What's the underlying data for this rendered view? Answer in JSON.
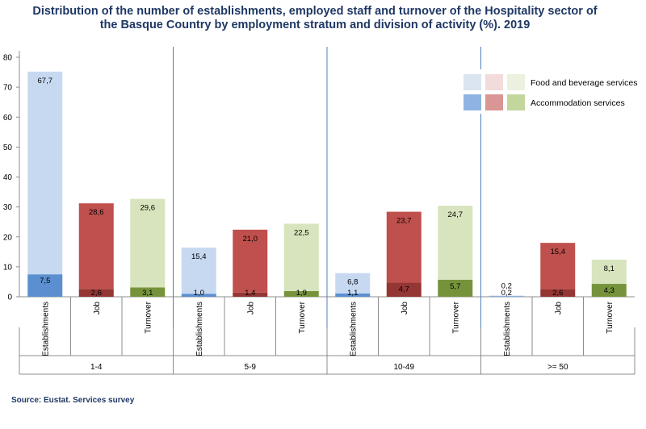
{
  "title": "Distribution of the number of establishments, employed staff and turnover of the Hospitality sector of the Basque Country by employment stratum and division of activity (%). 2019",
  "source": "Source: Eustat. Services survey",
  "colors": {
    "establishments": {
      "food": "#c6d9f1",
      "accom": "#5b8fd0"
    },
    "job": {
      "food": "#c0504d",
      "accom": "#943634"
    },
    "turnover": {
      "food": "#d7e4bd",
      "accom": "#76933c"
    },
    "legend_food": [
      "#dbe5f1",
      "#f2dcdb",
      "#ebf1de"
    ],
    "legend_accom": [
      "#8eb4e3",
      "#d99694",
      "#c3d69b"
    ]
  },
  "chart_data": {
    "type": "bar",
    "stacked": true,
    "ylim": [
      0,
      80
    ],
    "yticks": [
      "0",
      "10",
      "20",
      "30",
      "40",
      "50",
      "60",
      "70",
      "80"
    ],
    "groups": [
      "1-4",
      "5-9",
      "10-49",
      ">= 50"
    ],
    "categories": [
      "Establishments",
      "Job",
      "Turnover"
    ],
    "series": [
      {
        "name": "Accommodation services",
        "values": [
          [
            7.5,
            2.6,
            3.1
          ],
          [
            1.0,
            1.4,
            1.9
          ],
          [
            1.1,
            4.7,
            5.7
          ],
          [
            0.2,
            2.6,
            4.3
          ]
        ]
      },
      {
        "name": "Food and beverage services",
        "values": [
          [
            67.7,
            28.6,
            29.6
          ],
          [
            15.4,
            21.0,
            22.5
          ],
          [
            6.8,
            23.7,
            24.7
          ],
          [
            0.2,
            15.4,
            8.1
          ]
        ]
      }
    ],
    "labels_accom": [
      [
        "7,5",
        "2,6",
        "3,1"
      ],
      [
        "1,0",
        "1,4",
        "1,9"
      ],
      [
        "1,1",
        "4,7",
        "5,7"
      ],
      [
        "0,2",
        "2,6",
        "4,3"
      ]
    ],
    "labels_food": [
      [
        "67,7",
        "28,6",
        "29,6"
      ],
      [
        "15,4",
        "21,0",
        "22,5"
      ],
      [
        "6,8",
        "23,7",
        "24,7"
      ],
      [
        "0,2",
        "15,4",
        "8,1"
      ]
    ],
    "legend": [
      "Food and beverage services",
      "Accommodation services"
    ],
    "legend_position": "top-right"
  }
}
